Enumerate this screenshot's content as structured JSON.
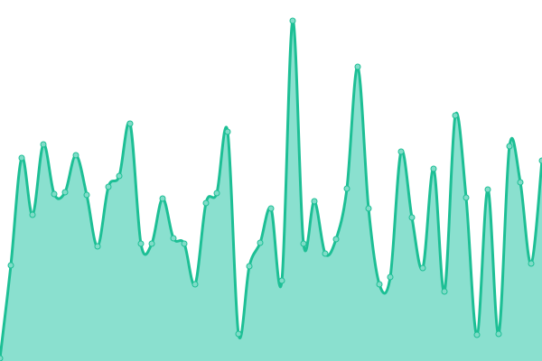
{
  "chart_data": {
    "type": "area",
    "title": "",
    "xlabel": "",
    "ylabel": "",
    "grid": false,
    "axes_visible": false,
    "legend": "none",
    "ylim": [
      0,
      400
    ],
    "x": [
      0,
      1,
      2,
      3,
      4,
      5,
      6,
      7,
      8,
      9,
      10,
      11,
      12,
      13,
      14,
      15,
      16,
      17,
      18,
      19,
      20,
      21,
      22,
      23,
      24,
      25,
      26,
      27,
      28,
      29,
      30,
      31,
      32,
      33,
      34,
      35,
      36,
      37,
      38,
      39,
      40,
      41,
      42,
      43,
      44,
      45,
      46,
      47,
      48,
      49,
      50
    ],
    "series": [
      {
        "values": [
          3,
          106,
          225,
          162,
          240,
          185,
          187,
          228,
          184,
          127,
          193,
          205,
          263,
          130,
          130,
          180,
          136,
          130,
          85,
          175,
          186,
          254,
          30,
          105,
          131,
          169,
          89,
          377,
          130,
          177,
          119,
          135,
          191,
          326,
          169,
          85,
          93,
          232,
          159,
          103,
          213,
          77,
          272,
          181,
          29,
          190,
          30,
          238,
          198,
          108,
          222
        ]
      }
    ],
    "colors": {
      "line": "#1dbf95",
      "fill": "#8ae0cf",
      "marker_fill": "#80dcc8"
    }
  }
}
